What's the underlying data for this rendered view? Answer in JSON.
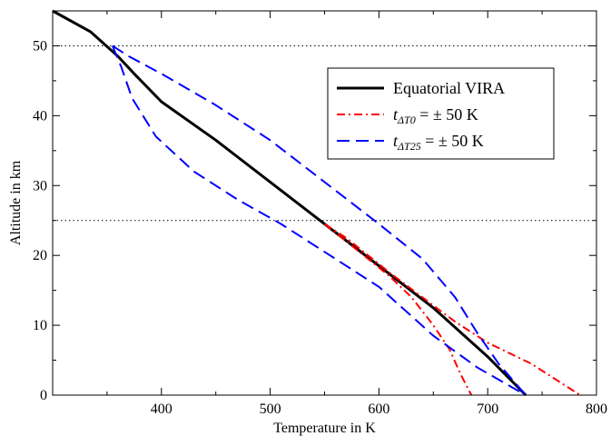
{
  "chart_data": {
    "type": "line",
    "title": "",
    "xlabel": "Temperature in K",
    "ylabel": "Altitude in km",
    "xlim": [
      300,
      800
    ],
    "ylim": [
      0,
      55
    ],
    "x_ticks": [
      400,
      500,
      600,
      700,
      800
    ],
    "y_ticks": [
      0,
      10,
      20,
      30,
      40,
      50
    ],
    "grid": false,
    "reference_lines": [
      {
        "axis": "y",
        "value": 50,
        "style": "dotted",
        "color": "#000000"
      },
      {
        "axis": "y",
        "value": 25,
        "style": "dotted",
        "color": "#000000"
      }
    ],
    "legend": {
      "placement": "upper-right",
      "entries": [
        {
          "label": "Equatorial VIRA",
          "series": 0
        },
        {
          "label_italic": "t",
          "label_sub": "ΔT0",
          "label_rest": " =  ± 50 K",
          "series": 1
        },
        {
          "label_italic": "t",
          "label_sub": "ΔT25",
          "label_rest": " =  ± 50 K",
          "series": 2
        }
      ]
    },
    "series": [
      {
        "name": "Equatorial VIRA",
        "color": "#000000",
        "style": "solid",
        "lines": [
          [
            [
              300,
              55
            ],
            [
              335,
              52
            ],
            [
              360,
              48.5
            ],
            [
              375,
              46
            ],
            [
              400,
              42
            ],
            [
              450,
              36.5
            ],
            [
              500,
              30.5
            ],
            [
              550,
              24.5
            ],
            [
              600,
              18.5
            ],
            [
              650,
              12.5
            ],
            [
              700,
              5.5
            ],
            [
              735,
              0
            ]
          ]
        ]
      },
      {
        "name": "t_ΔT0 = ± 50 K",
        "color": "#ff0000",
        "style": "dashdot",
        "lines": [
          [
            [
              550,
              24.5
            ],
            [
              570,
              22
            ],
            [
              590,
              19.5
            ],
            [
              610,
              17
            ],
            [
              630,
              14
            ],
            [
              650,
              10
            ],
            [
              665,
              6.5
            ],
            [
              675,
              3
            ],
            [
              685,
              0
            ]
          ],
          [
            [
              550,
              24.5
            ],
            [
              570,
              22.5
            ],
            [
              590,
              20
            ],
            [
              610,
              17.5
            ],
            [
              640,
              14
            ],
            [
              670,
              10.5
            ],
            [
              700,
              7.5
            ],
            [
              740,
              4.5
            ],
            [
              785,
              0
            ]
          ]
        ]
      },
      {
        "name": "t_ΔT25 = ± 50 K",
        "color": "#0000ff",
        "style": "dashed",
        "lines": [
          [
            [
              355,
              50
            ],
            [
              370,
              48.5
            ],
            [
              400,
              46
            ],
            [
              450,
              41.5
            ],
            [
              500,
              36.5
            ],
            [
              550,
              30.5
            ],
            [
              600,
              24.5
            ],
            [
              640,
              19.5
            ],
            [
              670,
              14
            ],
            [
              690,
              9
            ],
            [
              710,
              4.5
            ],
            [
              735,
              0
            ]
          ],
          [
            [
              355,
              50
            ],
            [
              363,
              47
            ],
            [
              373,
              42.5
            ],
            [
              395,
              37
            ],
            [
              430,
              32
            ],
            [
              470,
              28
            ],
            [
              510,
              24.5
            ],
            [
              550,
              20.5
            ],
            [
              600,
              15.5
            ],
            [
              650,
              8.5
            ],
            [
              690,
              4
            ],
            [
              735,
              0
            ]
          ]
        ]
      }
    ]
  }
}
